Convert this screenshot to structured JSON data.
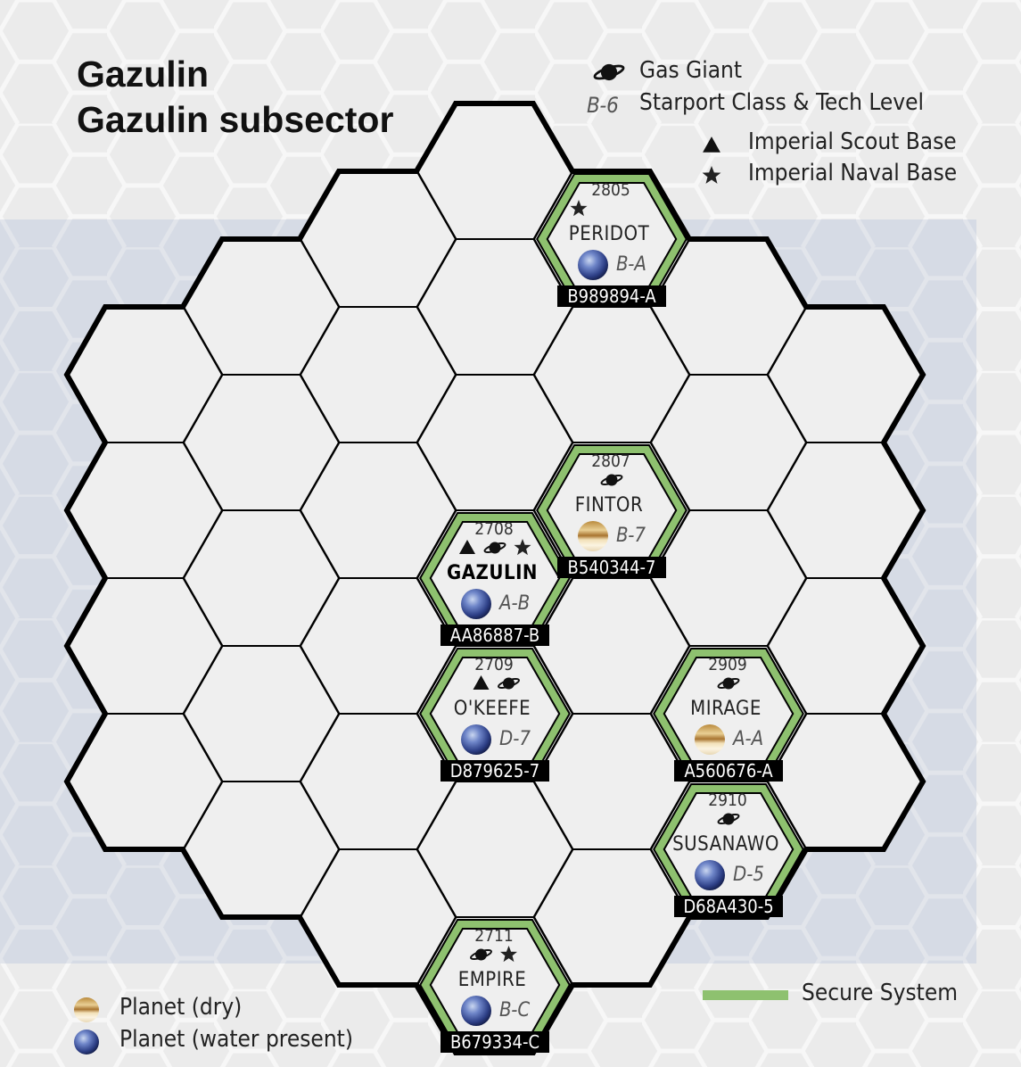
{
  "title": {
    "line1": "Gazulin",
    "line2": "Gazulin subsector"
  },
  "legend": {
    "gas_giant": "Gas Giant",
    "starport_example": "B-6",
    "starport": "Starport Class & Tech Level",
    "scout_base": "Imperial Scout Base",
    "naval_base": "Imperial Naval Base",
    "secure_system": "Secure System",
    "planet_dry": "Planet (dry)",
    "planet_water": "Planet (water present)"
  },
  "colors": {
    "secure_border": "#8ec16f",
    "hex_fill": "#efefef",
    "hex_stroke": "#000000",
    "background": "#ebebeb",
    "subsector_band": "#d6dbe5"
  },
  "systems": [
    {
      "hex": "2805",
      "name": "PERIDOT",
      "uwp": "B989894-A",
      "code": "B-A",
      "planet": "water",
      "scout": false,
      "gas": false,
      "naval": true,
      "secure": true,
      "bold": false
    },
    {
      "hex": "2807",
      "name": "FINTOR",
      "uwp": "B540344-7",
      "code": "B-7",
      "planet": "dry",
      "scout": false,
      "gas": true,
      "naval": false,
      "secure": true,
      "bold": false
    },
    {
      "hex": "2708",
      "name": "GAZULIN",
      "uwp": "AA86887-B",
      "code": "A-B",
      "planet": "water",
      "scout": true,
      "gas": true,
      "naval": true,
      "secure": true,
      "bold": true
    },
    {
      "hex": "2709",
      "name": "O'KEEFE",
      "uwp": "D879625-7",
      "code": "D-7",
      "planet": "water",
      "scout": true,
      "gas": true,
      "naval": false,
      "secure": true,
      "bold": false
    },
    {
      "hex": "2909",
      "name": "MIRAGE",
      "uwp": "A560676-A",
      "code": "A-A",
      "planet": "dry",
      "scout": false,
      "gas": true,
      "naval": false,
      "secure": true,
      "bold": false
    },
    {
      "hex": "2910",
      "name": "SUSANAWO",
      "uwp": "D68A430-5",
      "code": "D-5",
      "planet": "water",
      "scout": false,
      "gas": true,
      "naval": false,
      "secure": true,
      "bold": false
    },
    {
      "hex": "2711",
      "name": "EMPIRE",
      "uwp": "B679334-C",
      "code": "B-C",
      "planet": "water",
      "scout": false,
      "gas": true,
      "naval": true,
      "secure": true,
      "bold": false
    }
  ]
}
